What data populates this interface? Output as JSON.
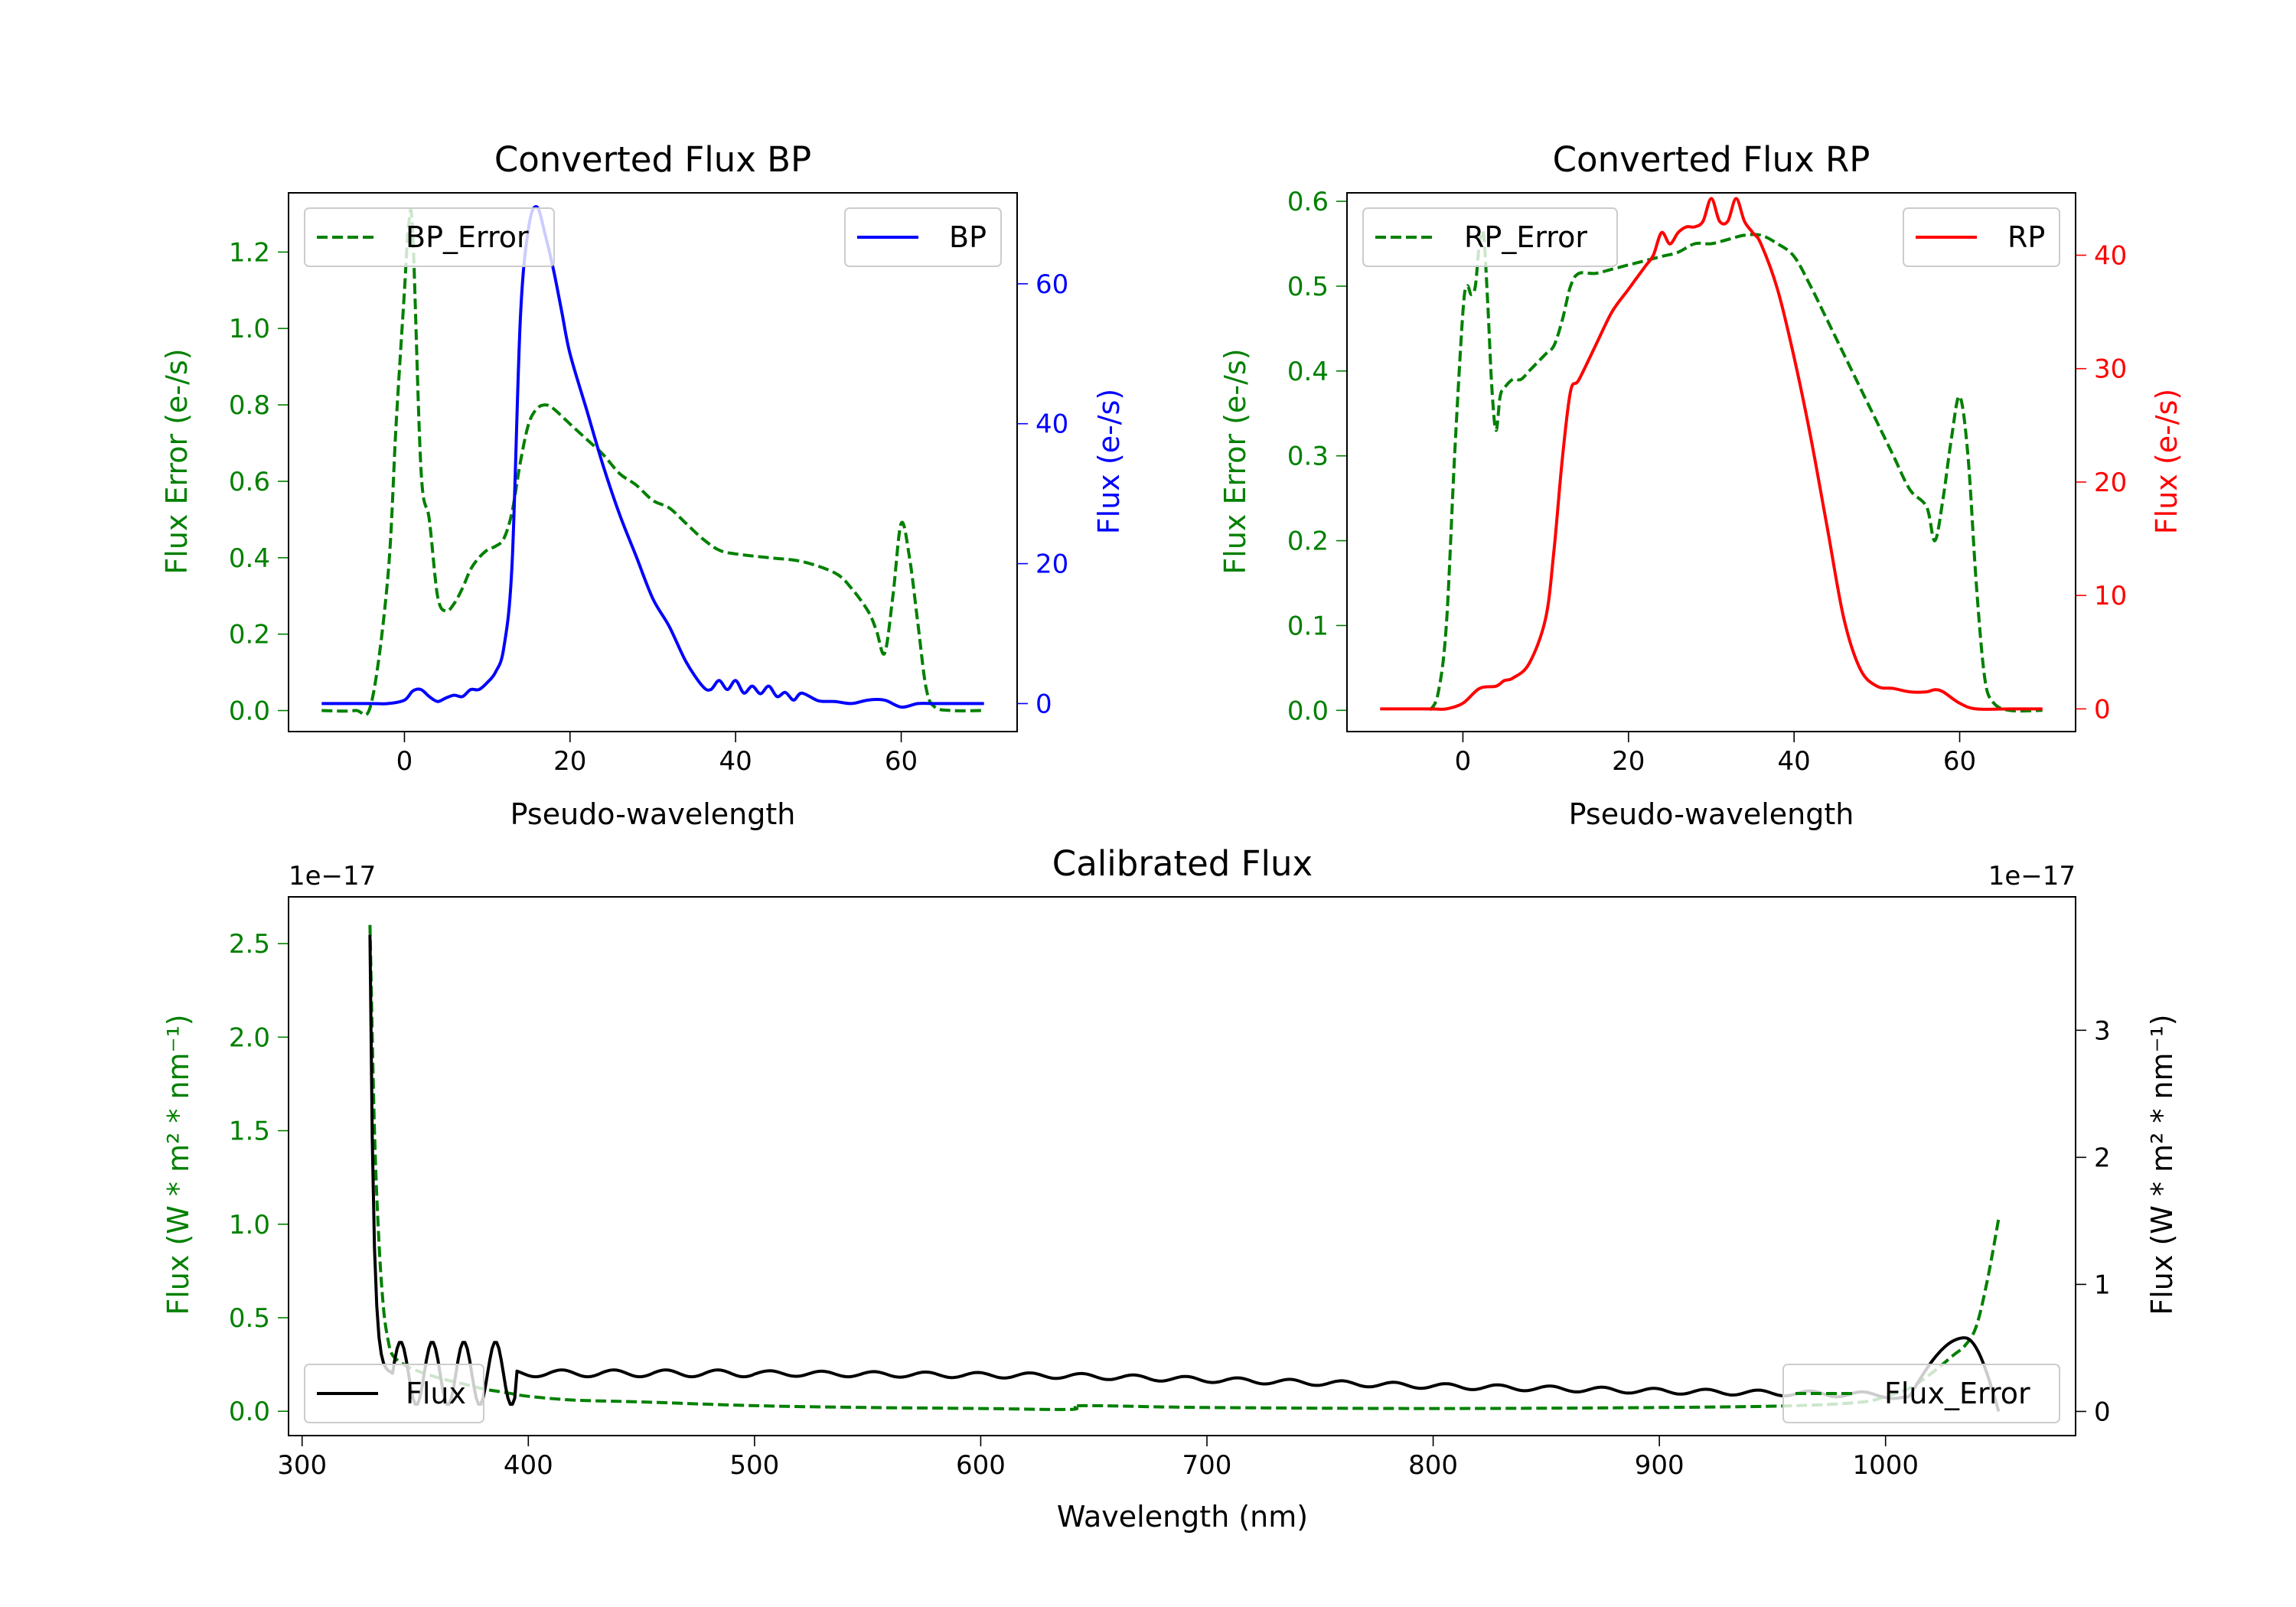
{
  "chart_data": [
    {
      "type": "line",
      "title": "Converted Flux BP",
      "xlabel": "Pseudo-wavelength",
      "xlim": [
        -14,
        74
      ],
      "xticks": [
        "0",
        "20",
        "40",
        "60"
      ],
      "left_axis": {
        "label": "Flux Error (e-/s)",
        "color": "#008000",
        "ylim": [
          -0.055,
          1.355
        ],
        "ticks": [
          "0.0",
          "0.2",
          "0.4",
          "0.6",
          "0.8",
          "1.0",
          "1.2"
        ]
      },
      "right_axis": {
        "label": "Flux (e-/s)",
        "color": "#0000ff",
        "ylim": [
          -4,
          73
        ],
        "ticks": [
          "0",
          "20",
          "40",
          "60"
        ]
      },
      "series": [
        {
          "name": "BP_Error",
          "axis": "left",
          "style": "dashed",
          "color": "#008000",
          "x": [
            -10,
            -6,
            -4,
            -2,
            -1,
            0,
            0.5,
            1,
            2,
            3,
            4,
            5,
            6,
            7,
            8,
            9,
            10,
            11,
            12,
            13,
            14,
            15,
            16,
            17,
            18,
            20,
            22,
            24,
            26,
            28,
            30,
            32,
            34,
            36,
            38,
            40,
            44,
            48,
            52,
            54,
            56,
            57,
            58,
            59,
            60,
            61,
            62,
            63,
            64,
            66,
            70
          ],
          "y": [
            0.0,
            0.0,
            0.02,
            0.35,
            0.75,
            1.1,
            1.27,
            1.25,
            0.63,
            0.5,
            0.3,
            0.26,
            0.28,
            0.32,
            0.37,
            0.4,
            0.42,
            0.43,
            0.45,
            0.52,
            0.65,
            0.75,
            0.79,
            0.8,
            0.79,
            0.75,
            0.71,
            0.67,
            0.62,
            0.59,
            0.55,
            0.53,
            0.49,
            0.45,
            0.42,
            0.41,
            0.4,
            0.39,
            0.36,
            0.32,
            0.26,
            0.21,
            0.15,
            0.3,
            0.49,
            0.4,
            0.23,
            0.06,
            0.01,
            0.0,
            0.0
          ]
        },
        {
          "name": "BP",
          "axis": "right",
          "style": "solid",
          "color": "#0000ff",
          "x": [
            -10,
            -4,
            -2,
            0,
            1,
            2,
            3,
            4,
            5,
            6,
            7,
            8,
            9,
            10,
            11,
            12,
            13,
            14,
            15,
            16,
            17,
            18,
            19,
            20,
            22,
            24,
            26,
            28,
            30,
            32,
            34,
            36,
            37,
            38,
            39,
            40,
            41,
            42,
            43,
            44,
            45,
            46,
            47,
            48,
            50,
            52,
            54,
            56,
            58,
            60,
            62,
            64,
            66,
            70
          ],
          "y": [
            0,
            0,
            0,
            0.5,
            1.8,
            2.0,
            1.0,
            0.3,
            0.8,
            1.2,
            1.0,
            2.0,
            2.0,
            3.0,
            4.5,
            8,
            20,
            55,
            68,
            71,
            67,
            62,
            56,
            50,
            42,
            34,
            27,
            21,
            15,
            11,
            6,
            2.5,
            2,
            3.3,
            2.0,
            3.3,
            1.5,
            2.5,
            1.4,
            2.5,
            1.0,
            1.6,
            0.5,
            1.5,
            0.4,
            0.3,
            0.0,
            0.5,
            0.5,
            -0.5,
            0.0,
            0.0,
            0.0,
            0.0
          ]
        }
      ],
      "legend": [
        {
          "label": "BP_Error",
          "position": "upper-left"
        },
        {
          "label": "BP",
          "position": "upper-right"
        }
      ]
    },
    {
      "type": "line",
      "title": "Converted Flux RP",
      "xlabel": "Pseudo-wavelength",
      "xlim": [
        -14,
        74
      ],
      "xticks": [
        "0",
        "20",
        "40",
        "60"
      ],
      "left_axis": {
        "label": "Flux Error (e-/s)",
        "color": "#008000",
        "ylim": [
          -0.025,
          0.61
        ],
        "ticks": [
          "0.0",
          "0.1",
          "0.2",
          "0.3",
          "0.4",
          "0.5",
          "0.6"
        ]
      },
      "right_axis": {
        "label": "Flux (e-/s)",
        "color": "#ff0000",
        "ylim": [
          -2,
          45.5
        ],
        "ticks": [
          "0",
          "10",
          "20",
          "30",
          "40"
        ]
      },
      "series": [
        {
          "name": "RP_Error",
          "axis": "left",
          "style": "dashed",
          "color": "#008000",
          "x": [
            -4,
            -3,
            -2,
            -1,
            0,
            0.5,
            1,
            1.5,
            2,
            2.5,
            3,
            3.5,
            4,
            4.5,
            5,
            6,
            7,
            8,
            9,
            10,
            11,
            12,
            13,
            14,
            16,
            18,
            20,
            22,
            24,
            26,
            28,
            30,
            32,
            34,
            36,
            38,
            40,
            42,
            44,
            46,
            48,
            50,
            52,
            54,
            56,
            57,
            58,
            59,
            60,
            61,
            62,
            63,
            64,
            66,
            70
          ],
          "y": [
            0.0,
            0.02,
            0.1,
            0.3,
            0.47,
            0.5,
            0.49,
            0.5,
            0.55,
            0.56,
            0.48,
            0.38,
            0.33,
            0.37,
            0.38,
            0.39,
            0.39,
            0.4,
            0.41,
            0.42,
            0.43,
            0.46,
            0.5,
            0.515,
            0.515,
            0.52,
            0.525,
            0.53,
            0.535,
            0.54,
            0.55,
            0.55,
            0.555,
            0.56,
            0.56,
            0.55,
            0.535,
            0.5,
            0.46,
            0.42,
            0.38,
            0.34,
            0.3,
            0.26,
            0.24,
            0.2,
            0.25,
            0.32,
            0.37,
            0.3,
            0.15,
            0.04,
            0.01,
            0.0,
            0.0
          ]
        },
        {
          "name": "RP",
          "axis": "right",
          "style": "solid",
          "color": "#ff0000",
          "x": [
            -10,
            -4,
            -2,
            0,
            2,
            4,
            5,
            6,
            8,
            10,
            11,
            12,
            13,
            14,
            16,
            18,
            20,
            22,
            23,
            24,
            25,
            26,
            27,
            28,
            29,
            30,
            31,
            32,
            33,
            34,
            35,
            36,
            38,
            40,
            42,
            44,
            46,
            48,
            50,
            52,
            54,
            56,
            57,
            58,
            60,
            62,
            66,
            70
          ],
          "y": [
            0,
            0,
            0,
            0.5,
            1.8,
            2.0,
            2.5,
            2.7,
            4.0,
            8,
            14,
            22,
            28,
            29,
            32,
            35,
            37,
            39,
            40,
            42,
            41,
            42,
            42.5,
            42.5,
            43,
            45,
            43,
            43,
            45,
            43,
            42,
            41,
            37,
            31,
            24,
            16,
            8,
            3.5,
            2.0,
            1.8,
            1.5,
            1.5,
            1.7,
            1.5,
            0.5,
            0.0,
            0.0,
            0.0
          ]
        }
      ],
      "legend": [
        {
          "label": "RP_Error",
          "position": "upper-left"
        },
        {
          "label": "RP",
          "position": "upper-right"
        }
      ]
    },
    {
      "type": "line",
      "title": "Calibrated Flux",
      "xlabel": "Wavelength (nm)",
      "xlim": [
        294,
        1084
      ],
      "xticks": [
        "300",
        "400",
        "500",
        "600",
        "700",
        "800",
        "900",
        "1000"
      ],
      "left_axis": {
        "label": "Flux (W * m² * nm⁻¹)",
        "color": "#008000",
        "ylim": [
          -0.13,
          2.75
        ],
        "ticks": [
          "0.0",
          "0.5",
          "1.0",
          "1.5",
          "2.0",
          "2.5"
        ],
        "offset_text": "1e−17"
      },
      "right_axis": {
        "label": "Flux (W * m² * nm⁻¹)",
        "color": "#000000",
        "ylim": [
          -0.19,
          4.05
        ],
        "ticks": [
          "0",
          "1",
          "2",
          "3"
        ],
        "offset_text": "1e−17"
      },
      "series": [
        {
          "name": "Flux_Error",
          "axis": "left",
          "style": "dashed",
          "color": "#008000",
          "x": [
            330,
            332,
            334,
            336,
            338,
            340,
            345,
            350,
            360,
            370,
            380,
            390,
            400,
            420,
            450,
            500,
            550,
            600,
            640,
            645,
            700,
            800,
            900,
            960,
            990,
            1000,
            1010,
            1020,
            1030,
            1035,
            1040,
            1045,
            1050
          ],
          "y": [
            2.6,
            1.5,
            0.9,
            0.55,
            0.38,
            0.3,
            0.25,
            0.22,
            0.18,
            0.15,
            0.12,
            0.1,
            0.08,
            0.06,
            0.05,
            0.03,
            0.02,
            0.015,
            0.01,
            0.03,
            0.02,
            0.015,
            0.02,
            0.03,
            0.05,
            0.08,
            0.12,
            0.2,
            0.3,
            0.35,
            0.45,
            0.7,
            1.03
          ]
        },
        {
          "name": "Flux",
          "axis": "right",
          "style": "solid",
          "color": "#000000",
          "baseline": [
            [
              330,
              0.3
            ],
            [
              350,
              0.3
            ],
            [
              400,
              0.3
            ],
            [
              500,
              0.3
            ],
            [
              640,
              0.28
            ],
            [
              700,
              0.25
            ],
            [
              800,
              0.2
            ],
            [
              900,
              0.16
            ],
            [
              1000,
              0.13
            ],
            [
              1010,
              0.1
            ]
          ],
          "spike": {
            "x": 330,
            "value": 3.75
          },
          "bump": {
            "x": 1035,
            "value": 0.58
          },
          "end": {
            "x": 1050,
            "value": 0.0
          }
        }
      ],
      "legend": [
        {
          "label": "Flux",
          "position": "lower-left"
        },
        {
          "label": "Flux_Error",
          "position": "lower-right"
        }
      ]
    }
  ]
}
